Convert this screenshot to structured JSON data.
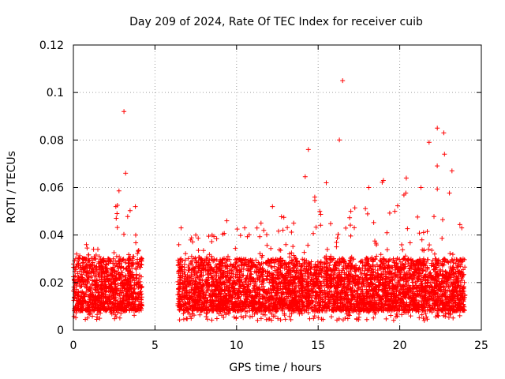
{
  "chart_data": {
    "type": "scatter",
    "title": "Day 209 of 2024, Rate Of TEC Index for receiver cuib",
    "xlabel": "GPS time / hours",
    "ylabel": "ROTI / TECUs",
    "xlim": [
      0,
      25
    ],
    "ylim": [
      0,
      0.12
    ],
    "xticks": [
      "0",
      "5",
      "10",
      "15",
      "20",
      "25"
    ],
    "yticks": [
      "0",
      "0.02",
      "0.04",
      "0.06",
      "0.08",
      "0.1",
      "0.12"
    ],
    "grid": true,
    "marker": "+",
    "series": [
      {
        "color": "#ff0000",
        "segments": [
          {
            "x": [
              0.0,
              4.2
            ]
          },
          {
            "x": [
              6.4,
              24.0
            ]
          }
        ],
        "envelope": [
          {
            "x": 0.2,
            "y": 0.032
          },
          {
            "x": 0.8,
            "y": 0.036
          },
          {
            "x": 1.5,
            "y": 0.034
          },
          {
            "x": 2.6,
            "y": 0.052
          },
          {
            "x": 3.1,
            "y": 0.092
          },
          {
            "x": 3.2,
            "y": 0.066
          },
          {
            "x": 3.8,
            "y": 0.052
          },
          {
            "x": 4.2,
            "y": 0.03
          },
          {
            "x": 6.6,
            "y": 0.043
          },
          {
            "x": 7.5,
            "y": 0.04
          },
          {
            "x": 8.5,
            "y": 0.04
          },
          {
            "x": 9.4,
            "y": 0.046
          },
          {
            "x": 10.5,
            "y": 0.043
          },
          {
            "x": 11.5,
            "y": 0.045
          },
          {
            "x": 12.2,
            "y": 0.052
          },
          {
            "x": 13.5,
            "y": 0.045
          },
          {
            "x": 14.4,
            "y": 0.076
          },
          {
            "x": 15.1,
            "y": 0.05
          },
          {
            "x": 15.5,
            "y": 0.062
          },
          {
            "x": 16.3,
            "y": 0.08
          },
          {
            "x": 16.5,
            "y": 0.105
          },
          {
            "x": 17.0,
            "y": 0.05
          },
          {
            "x": 18.1,
            "y": 0.06
          },
          {
            "x": 19.0,
            "y": 0.063
          },
          {
            "x": 19.7,
            "y": 0.05
          },
          {
            "x": 20.4,
            "y": 0.064
          },
          {
            "x": 21.3,
            "y": 0.06
          },
          {
            "x": 21.8,
            "y": 0.079
          },
          {
            "x": 22.3,
            "y": 0.085
          },
          {
            "x": 22.7,
            "y": 0.083
          },
          {
            "x": 23.2,
            "y": 0.067
          },
          {
            "x": 23.8,
            "y": 0.043
          }
        ],
        "baseline_low": 0.004,
        "typical_band": [
          0.008,
          0.03
        ]
      }
    ]
  }
}
